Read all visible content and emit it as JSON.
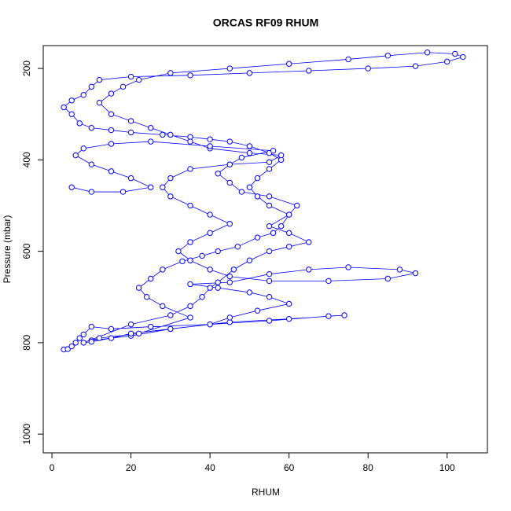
{
  "chart_data": {
    "type": "scatter-line",
    "title": "ORCAS RF09 RHUM",
    "x_label": "RHUM",
    "y_label": "Pressure (mbar)",
    "xlim": [
      -2.2,
      110.2
    ],
    "xticks": [
      0,
      20,
      40,
      60,
      80,
      100
    ],
    "ylim": [
      1041,
      150
    ],
    "yticks": [
      200,
      400,
      600,
      800,
      1000
    ],
    "series": [
      {
        "color": "#0000ff",
        "x": [
          3,
          4,
          5,
          6,
          7,
          8,
          10,
          15,
          25,
          40,
          55,
          70,
          74,
          60,
          45,
          30,
          20,
          10,
          12,
          22,
          35,
          28,
          24,
          22,
          25,
          28,
          33,
          38,
          42,
          47,
          52,
          56,
          58,
          60,
          55,
          52,
          50,
          52,
          55,
          58,
          55,
          50,
          45,
          40,
          35,
          28,
          20,
          15,
          10,
          7,
          5,
          3,
          5,
          8,
          10,
          12,
          20,
          35,
          50,
          65,
          80,
          92,
          100,
          104,
          102,
          95,
          85,
          75,
          60,
          45,
          30,
          22,
          18,
          15,
          12,
          15,
          20,
          25,
          30,
          35,
          40,
          50,
          58,
          55,
          45,
          35,
          30,
          28,
          30,
          35,
          40,
          45,
          40,
          35,
          32,
          35,
          40,
          45,
          55,
          70,
          85,
          92,
          88,
          75,
          65,
          55,
          45,
          35,
          42,
          50,
          55,
          60,
          52,
          45,
          40,
          30,
          20,
          15,
          10,
          8,
          20,
          30,
          35,
          38,
          40,
          42,
          46,
          50,
          55,
          60,
          65,
          60,
          55,
          60,
          62,
          55,
          48,
          45,
          42,
          45,
          48,
          56,
          40,
          25,
          15,
          8,
          6,
          10,
          15,
          20,
          25,
          18,
          10,
          5
        ],
        "y": [
          815,
          814,
          808,
          800,
          790,
          782,
          765,
          770,
          765,
          760,
          752,
          742,
          740,
          748,
          755,
          770,
          785,
          795,
          790,
          780,
          745,
          720,
          700,
          680,
          660,
          640,
          622,
          610,
          600,
          590,
          570,
          560,
          545,
          520,
          500,
          480,
          460,
          440,
          420,
          400,
          385,
          370,
          360,
          355,
          350,
          345,
          340,
          335,
          330,
          320,
          300,
          285,
          270,
          258,
          240,
          225,
          218,
          215,
          210,
          205,
          200,
          195,
          185,
          175,
          168,
          165,
          172,
          180,
          190,
          200,
          210,
          225,
          240,
          255,
          275,
          300,
          315,
          330,
          345,
          360,
          375,
          385,
          390,
          405,
          410,
          420,
          440,
          460,
          480,
          500,
          520,
          540,
          560,
          580,
          600,
          620,
          640,
          655,
          665,
          665,
          660,
          648,
          640,
          635,
          640,
          650,
          668,
          672,
          680,
          690,
          700,
          715,
          730,
          745,
          760,
          770,
          780,
          790,
          798,
          800,
          760,
          740,
          720,
          700,
          680,
          668,
          640,
          620,
          600,
          590,
          580,
          560,
          545,
          520,
          500,
          480,
          470,
          450,
          430,
          410,
          395,
          380,
          370,
          360,
          365,
          375,
          390,
          410,
          425,
          440,
          460,
          470,
          470,
          460
        ]
      }
    ]
  }
}
